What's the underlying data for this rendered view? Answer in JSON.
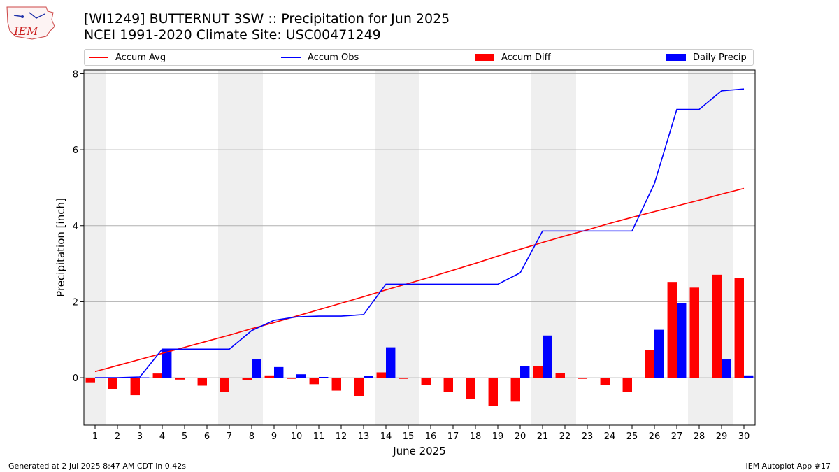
{
  "header": {
    "title_line1": "[WI1249] BUTTERNUT 3SW :: Precipitation for Jun 2025",
    "title_line2": "NCEI 1991-2020 Climate Site: USC00471249",
    "logo_text": "IEM"
  },
  "legend": {
    "placement": "top",
    "items": [
      {
        "label": "Accum Avg",
        "kind": "line",
        "color": "#ff0000"
      },
      {
        "label": "Accum Obs",
        "kind": "line",
        "color": "#0000ff"
      },
      {
        "label": "Accum Diff",
        "kind": "bar",
        "color": "#ff0000"
      },
      {
        "label": "Daily Precip",
        "kind": "bar",
        "color": "#0000ff"
      }
    ]
  },
  "footer": {
    "left": "Generated at 2 Jul 2025 8:47 AM CDT in 0.42s",
    "right": "IEM Autoplot App #17"
  },
  "chart_data": {
    "type": "bar",
    "title": "[WI1249] BUTTERNUT 3SW :: Precipitation for Jun 2025",
    "subtitle": "NCEI 1991-2020 Climate Site: USC00471249",
    "xlabel": "June 2025",
    "ylabel": "Precipitation [inch]",
    "xlim": [
      0.5,
      30.5
    ],
    "ylim": [
      -1.25,
      8.1
    ],
    "yticks": [
      0,
      2,
      4,
      6,
      8
    ],
    "grid": "horizontal",
    "categories": [
      "1",
      "2",
      "3",
      "4",
      "5",
      "6",
      "7",
      "8",
      "9",
      "10",
      "11",
      "12",
      "13",
      "14",
      "15",
      "16",
      "17",
      "18",
      "19",
      "20",
      "21",
      "22",
      "23",
      "24",
      "25",
      "26",
      "27",
      "28",
      "29",
      "30"
    ],
    "weekend_shading": [
      [
        0.5,
        1.5
      ],
      [
        6.5,
        8.5
      ],
      [
        13.5,
        15.5
      ],
      [
        20.5,
        22.5
      ],
      [
        27.5,
        29.5
      ]
    ],
    "series": [
      {
        "name": "Accum Avg",
        "kind": "line",
        "color": "#ff0000",
        "values": [
          0.16,
          0.32,
          0.48,
          0.64,
          0.8,
          0.96,
          1.12,
          1.29,
          1.45,
          1.62,
          1.79,
          1.96,
          2.13,
          2.31,
          2.48,
          2.65,
          2.83,
          3.01,
          3.2,
          3.38,
          3.56,
          3.73,
          3.89,
          4.06,
          4.22,
          4.37,
          4.52,
          4.67,
          4.83,
          4.98
        ]
      },
      {
        "name": "Accum Obs",
        "kind": "line",
        "color": "#0000ff",
        "values": [
          0.0,
          0.0,
          0.02,
          0.75,
          0.75,
          0.75,
          0.75,
          1.24,
          1.51,
          1.6,
          1.62,
          1.62,
          1.66,
          2.46,
          2.46,
          2.46,
          2.46,
          2.46,
          2.46,
          2.76,
          3.86,
          3.86,
          3.86,
          3.86,
          3.86,
          5.11,
          7.06,
          7.06,
          7.55,
          7.6
        ]
      },
      {
        "name": "Accum Diff",
        "kind": "bar",
        "color": "#ff0000",
        "values": [
          -0.14,
          -0.3,
          -0.46,
          0.11,
          -0.05,
          -0.21,
          -0.37,
          -0.06,
          0.06,
          -0.03,
          -0.17,
          -0.34,
          -0.48,
          0.14,
          -0.03,
          -0.2,
          -0.38,
          -0.56,
          -0.74,
          -0.63,
          0.3,
          0.12,
          -0.03,
          -0.2,
          -0.37,
          0.73,
          2.52,
          2.37,
          2.71,
          2.62
        ]
      },
      {
        "name": "Daily Precip",
        "kind": "bar",
        "color": "#0000ff",
        "values": [
          0.0,
          0.0,
          0.01,
          0.75,
          0.0,
          0.0,
          0.0,
          0.48,
          0.28,
          0.09,
          0.02,
          0.0,
          0.04,
          0.8,
          0.0,
          0.0,
          0.0,
          0.0,
          0.0,
          0.3,
          1.11,
          0.0,
          0.0,
          0.0,
          0.0,
          1.26,
          1.96,
          0.0,
          0.48,
          0.06
        ]
      }
    ]
  }
}
